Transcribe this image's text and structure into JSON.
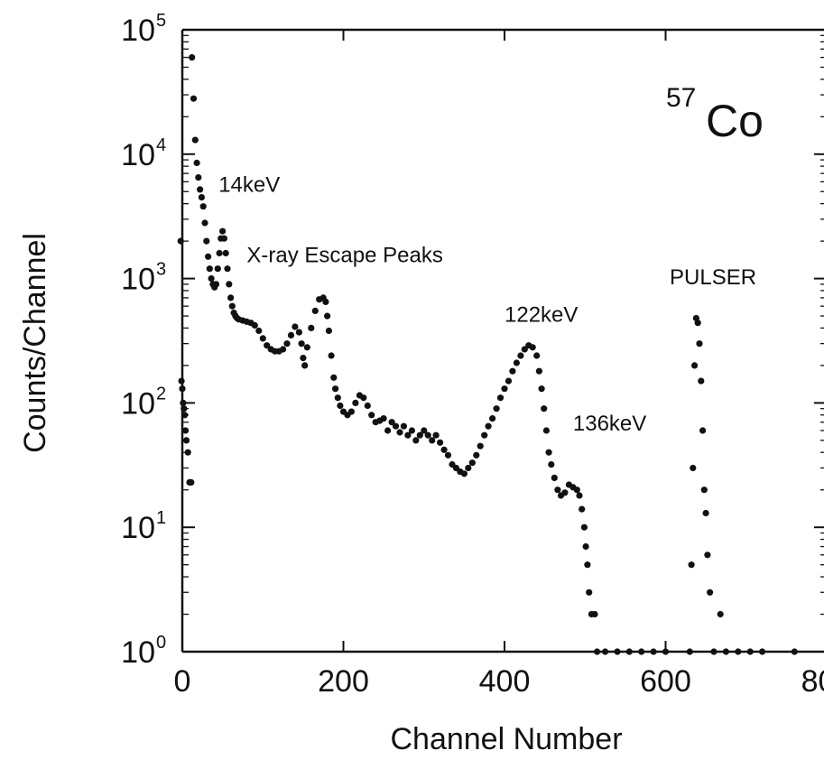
{
  "chart_data": {
    "type": "scatter",
    "title": "",
    "xlabel": "Channel Number",
    "ylabel": "Counts/Channel",
    "xlim": [
      0,
      800
    ],
    "ylim": [
      1,
      100000
    ],
    "y_scale": "log",
    "grid": false,
    "x_ticks": [
      {
        "value": 0,
        "label": "0"
      },
      {
        "value": 200,
        "label": "200"
      },
      {
        "value": 400,
        "label": "400"
      },
      {
        "value": 600,
        "label": "600"
      },
      {
        "value": 800,
        "label": "800"
      }
    ],
    "y_ticks": [
      {
        "value": 1,
        "base": "10",
        "exp": "0"
      },
      {
        "value": 10,
        "base": "10",
        "exp": "1"
      },
      {
        "value": 100,
        "base": "10",
        "exp": "2"
      },
      {
        "value": 1000,
        "base": "10",
        "exp": "3"
      },
      {
        "value": 10000,
        "base": "10",
        "exp": "4"
      },
      {
        "value": 100000,
        "base": "10",
        "exp": "5"
      }
    ],
    "isotope": {
      "mass_number": "57",
      "symbol": "Co"
    },
    "annotations": [
      {
        "text": "14keV",
        "x": 45,
        "y": 5000
      },
      {
        "text": "X-ray Escape Peaks",
        "x": 80,
        "y": 1350
      },
      {
        "text": "PULSER",
        "x": 605,
        "y": 900
      },
      {
        "text": "122keV",
        "x": 400,
        "y": 450
      },
      {
        "text": "136keV",
        "x": 485,
        "y": 60
      }
    ],
    "series": [
      {
        "color": "#111111",
        "points": [
          [
            -2,
            2000
          ],
          [
            -1,
            150
          ],
          [
            0,
            130
          ],
          [
            1,
            100
          ],
          [
            2,
            90
          ],
          [
            3,
            80
          ],
          [
            4,
            60
          ],
          [
            5,
            50
          ],
          [
            7,
            40
          ],
          [
            9,
            23
          ],
          [
            11,
            23
          ],
          [
            12,
            60000
          ],
          [
            14,
            28000
          ],
          [
            16,
            13000
          ],
          [
            18,
            8500
          ],
          [
            20,
            6500
          ],
          [
            22,
            5200
          ],
          [
            24,
            4500
          ],
          [
            26,
            3800
          ],
          [
            28,
            2800
          ],
          [
            30,
            2000
          ],
          [
            32,
            1500
          ],
          [
            34,
            1200
          ],
          [
            36,
            1000
          ],
          [
            38,
            900
          ],
          [
            40,
            850
          ],
          [
            42,
            900
          ],
          [
            44,
            1200
          ],
          [
            46,
            1600
          ],
          [
            48,
            2100
          ],
          [
            50,
            2400
          ],
          [
            52,
            2100
          ],
          [
            54,
            1600
          ],
          [
            56,
            1200
          ],
          [
            58,
            900
          ],
          [
            60,
            700
          ],
          [
            62,
            600
          ],
          [
            64,
            530
          ],
          [
            66,
            500
          ],
          [
            68,
            480
          ],
          [
            70,
            470
          ],
          [
            75,
            460
          ],
          [
            80,
            450
          ],
          [
            85,
            440
          ],
          [
            90,
            420
          ],
          [
            95,
            380
          ],
          [
            100,
            330
          ],
          [
            105,
            290
          ],
          [
            110,
            270
          ],
          [
            115,
            260
          ],
          [
            120,
            260
          ],
          [
            125,
            270
          ],
          [
            130,
            300
          ],
          [
            135,
            350
          ],
          [
            140,
            410
          ],
          [
            145,
            370
          ],
          [
            148,
            300
          ],
          [
            150,
            230
          ],
          [
            152,
            200
          ],
          [
            155,
            280
          ],
          [
            160,
            400
          ],
          [
            165,
            550
          ],
          [
            170,
            680
          ],
          [
            175,
            700
          ],
          [
            178,
            650
          ],
          [
            180,
            500
          ],
          [
            182,
            380
          ],
          [
            185,
            240
          ],
          [
            188,
            160
          ],
          [
            190,
            130
          ],
          [
            193,
            110
          ],
          [
            196,
            95
          ],
          [
            200,
            85
          ],
          [
            205,
            80
          ],
          [
            210,
            85
          ],
          [
            215,
            100
          ],
          [
            220,
            115
          ],
          [
            225,
            110
          ],
          [
            230,
            95
          ],
          [
            235,
            80
          ],
          [
            240,
            70
          ],
          [
            245,
            72
          ],
          [
            250,
            75
          ],
          [
            255,
            60
          ],
          [
            260,
            70
          ],
          [
            265,
            65
          ],
          [
            270,
            58
          ],
          [
            275,
            65
          ],
          [
            280,
            55
          ],
          [
            285,
            60
          ],
          [
            290,
            50
          ],
          [
            295,
            55
          ],
          [
            300,
            60
          ],
          [
            305,
            55
          ],
          [
            310,
            50
          ],
          [
            315,
            55
          ],
          [
            320,
            48
          ],
          [
            325,
            42
          ],
          [
            330,
            38
          ],
          [
            335,
            32
          ],
          [
            340,
            30
          ],
          [
            345,
            28
          ],
          [
            350,
            27
          ],
          [
            355,
            30
          ],
          [
            360,
            33
          ],
          [
            365,
            38
          ],
          [
            370,
            45
          ],
          [
            375,
            55
          ],
          [
            380,
            65
          ],
          [
            385,
            75
          ],
          [
            390,
            90
          ],
          [
            395,
            110
          ],
          [
            400,
            130
          ],
          [
            405,
            150
          ],
          [
            410,
            180
          ],
          [
            415,
            210
          ],
          [
            420,
            240
          ],
          [
            425,
            270
          ],
          [
            430,
            290
          ],
          [
            435,
            280
          ],
          [
            440,
            240
          ],
          [
            443,
            180
          ],
          [
            446,
            130
          ],
          [
            449,
            90
          ],
          [
            452,
            60
          ],
          [
            455,
            40
          ],
          [
            458,
            32
          ],
          [
            462,
            25
          ],
          [
            466,
            20
          ],
          [
            470,
            18
          ],
          [
            475,
            19
          ],
          [
            480,
            22
          ],
          [
            485,
            21
          ],
          [
            490,
            20
          ],
          [
            493,
            18
          ],
          [
            496,
            14
          ],
          [
            499,
            10
          ],
          [
            501,
            7
          ],
          [
            503,
            5
          ],
          [
            505,
            3
          ],
          [
            508,
            2
          ],
          [
            512,
            2
          ],
          [
            515,
            1
          ],
          [
            525,
            1
          ],
          [
            540,
            1
          ],
          [
            555,
            1
          ],
          [
            570,
            1
          ],
          [
            585,
            1
          ],
          [
            600,
            1
          ],
          [
            630,
            1
          ],
          [
            632,
            5
          ],
          [
            634,
            30
          ],
          [
            636,
            200
          ],
          [
            638,
            480
          ],
          [
            640,
            440
          ],
          [
            642,
            300
          ],
          [
            644,
            150
          ],
          [
            646,
            60
          ],
          [
            648,
            20
          ],
          [
            650,
            13
          ],
          [
            652,
            6
          ],
          [
            655,
            3
          ],
          [
            660,
            1
          ],
          [
            668,
            2
          ],
          [
            675,
            1
          ],
          [
            690,
            1
          ],
          [
            705,
            1
          ],
          [
            720,
            1
          ],
          [
            760,
            1
          ]
        ]
      }
    ]
  }
}
